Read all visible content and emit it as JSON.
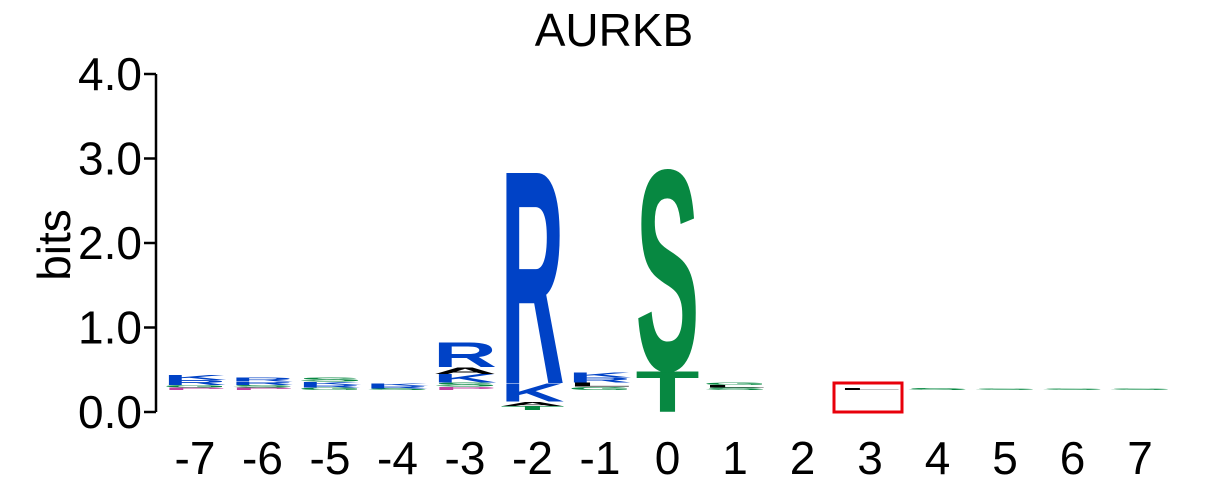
{
  "chart_data": {
    "type": "sequence-logo",
    "title": "AURKB",
    "ylabel": "bits",
    "ylim": [
      0,
      4
    ],
    "yticks": [
      "0.0",
      "1.0",
      "2.0",
      "3.0",
      "4.0"
    ],
    "positions": [
      "-7",
      "-6",
      "-5",
      "-4",
      "-3",
      "-2",
      "-1",
      "0",
      "1",
      "2",
      "3",
      "4",
      "5",
      "6",
      "7"
    ],
    "highlight_position": "3",
    "colors": {
      "basic": "#0042c6",
      "polar": "#078841",
      "acidic": "#e01b24",
      "hydrophobic": "#000000",
      "other": "#c040a0",
      "highlight": "#e8000b"
    },
    "columns": [
      {
        "position": "-7",
        "letters": [
          {
            "aa": "P",
            "bits": 0.03,
            "color": "#c040a0"
          },
          {
            "aa": "G",
            "bits": 0.03,
            "color": "#078841"
          },
          {
            "aa": "R",
            "bits": 0.06,
            "color": "#0042c6"
          },
          {
            "aa": "K",
            "bits": 0.06,
            "color": "#0042c6"
          }
        ]
      },
      {
        "position": "-6",
        "letters": [
          {
            "aa": "P",
            "bits": 0.03,
            "color": "#c040a0"
          },
          {
            "aa": "S",
            "bits": 0.03,
            "color": "#078841"
          },
          {
            "aa": "R",
            "bits": 0.04,
            "color": "#0042c6"
          },
          {
            "aa": "R",
            "bits": 0.05,
            "color": "#0042c6"
          }
        ]
      },
      {
        "position": "-5",
        "letters": [
          {
            "aa": "G",
            "bits": 0.03,
            "color": "#078841"
          },
          {
            "aa": "R",
            "bits": 0.03,
            "color": "#0042c6"
          },
          {
            "aa": "K",
            "bits": 0.04,
            "color": "#0042c6"
          },
          {
            "aa": "S",
            "bits": 0.05,
            "color": "#078841"
          }
        ]
      },
      {
        "position": "-4",
        "letters": [
          {
            "aa": "S",
            "bits": 0.02,
            "color": "#078841"
          },
          {
            "aa": "R",
            "bits": 0.03,
            "color": "#0042c6"
          },
          {
            "aa": "K",
            "bits": 0.03,
            "color": "#0042c6"
          }
        ]
      },
      {
        "position": "-3",
        "letters": [
          {
            "aa": "P",
            "bits": 0.04,
            "color": "#c040a0"
          },
          {
            "aa": "S",
            "bits": 0.05,
            "color": "#078841"
          },
          {
            "aa": "K",
            "bits": 0.1,
            "color": "#0042c6"
          },
          {
            "aa": "A",
            "bits": 0.08,
            "color": "#000000"
          },
          {
            "aa": "R",
            "bits": 0.3,
            "color": "#0042c6"
          }
        ]
      },
      {
        "position": "-2",
        "letters": [
          {
            "aa": "T",
            "bits": 0.05,
            "color": "#078841"
          },
          {
            "aa": "A",
            "bits": 0.05,
            "color": "#000000"
          },
          {
            "aa": "K",
            "bits": 0.22,
            "color": "#0042c6"
          },
          {
            "aa": "R",
            "bits": 2.6,
            "color": "#0042c6"
          }
        ]
      },
      {
        "position": "-1",
        "letters": [
          {
            "aa": "G",
            "bits": 0.04,
            "color": "#078841"
          },
          {
            "aa": "L",
            "bits": 0.05,
            "color": "#000000"
          },
          {
            "aa": "R",
            "bits": 0.06,
            "color": "#0042c6"
          },
          {
            "aa": "K",
            "bits": 0.06,
            "color": "#0042c6"
          }
        ]
      },
      {
        "position": "0",
        "letters": [
          {
            "aa": "T",
            "bits": 0.5,
            "color": "#078841"
          },
          {
            "aa": "S",
            "bits": 2.45,
            "color": "#078841"
          }
        ]
      },
      {
        "position": "1",
        "letters": [
          {
            "aa": "S",
            "bits": 0.03,
            "color": "#078841"
          },
          {
            "aa": "L",
            "bits": 0.03,
            "color": "#000000"
          },
          {
            "aa": "G",
            "bits": 0.03,
            "color": "#078841"
          }
        ]
      },
      {
        "position": "2",
        "letters": []
      },
      {
        "position": "3",
        "letters": [
          {
            "aa": "L",
            "bits": 0.02,
            "color": "#000000"
          }
        ]
      },
      {
        "position": "4",
        "letters": [
          {
            "aa": "S",
            "bits": 0.02,
            "color": "#078841"
          }
        ]
      },
      {
        "position": "5",
        "letters": [
          {
            "aa": "S",
            "bits": 0.01,
            "color": "#078841"
          }
        ]
      },
      {
        "position": "6",
        "letters": [
          {
            "aa": "S",
            "bits": 0.01,
            "color": "#078841"
          }
        ]
      },
      {
        "position": "7",
        "letters": [
          {
            "aa": "S",
            "bits": 0.01,
            "color": "#078841"
          }
        ]
      }
    ]
  }
}
